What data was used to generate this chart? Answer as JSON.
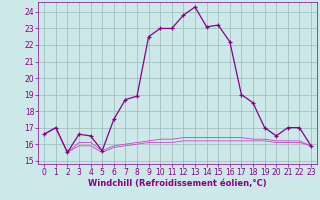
{
  "xlabel": "Windchill (Refroidissement éolien,°C)",
  "background_color": "#cce8e8",
  "grid_color": "#99bbbb",
  "line_color": "#880088",
  "line_color2": "#cc44cc",
  "xlim": [
    -0.5,
    23.5
  ],
  "ylim": [
    14.8,
    24.6
  ],
  "yticks": [
    15,
    16,
    17,
    18,
    19,
    20,
    21,
    22,
    23,
    24
  ],
  "xticks": [
    0,
    1,
    2,
    3,
    4,
    5,
    6,
    7,
    8,
    9,
    10,
    11,
    12,
    13,
    14,
    15,
    16,
    17,
    18,
    19,
    20,
    21,
    22,
    23
  ],
  "series1_x": [
    0,
    1,
    2,
    3,
    4,
    5,
    6,
    7,
    8,
    9,
    10,
    11,
    12,
    13,
    14,
    15,
    16,
    17,
    18,
    19,
    20,
    21,
    22,
    23
  ],
  "series1_y": [
    16.6,
    17.0,
    15.5,
    16.6,
    16.5,
    15.6,
    17.5,
    18.7,
    18.9,
    22.5,
    23.0,
    23.0,
    23.8,
    24.3,
    23.1,
    23.2,
    22.2,
    19.0,
    18.5,
    17.0,
    16.5,
    17.0,
    17.0,
    15.9
  ],
  "series2_x": [
    0,
    1,
    2,
    3,
    4,
    5,
    6,
    7,
    8,
    9,
    10,
    11,
    12,
    13,
    14,
    15,
    16,
    17,
    18,
    19,
    20,
    21,
    22,
    23
  ],
  "series2_y": [
    16.6,
    17.0,
    15.5,
    15.9,
    15.9,
    15.5,
    15.8,
    15.9,
    16.0,
    16.1,
    16.1,
    16.1,
    16.2,
    16.2,
    16.2,
    16.2,
    16.2,
    16.2,
    16.2,
    16.2,
    16.1,
    16.1,
    16.1,
    15.9
  ],
  "series3_x": [
    0,
    1,
    2,
    3,
    4,
    5,
    6,
    7,
    8,
    9,
    10,
    11,
    12,
    13,
    14,
    15,
    16,
    17,
    18,
    19,
    20,
    21,
    22,
    23
  ],
  "series3_y": [
    16.6,
    17.0,
    15.5,
    16.1,
    16.1,
    15.6,
    15.9,
    16.0,
    16.1,
    16.2,
    16.3,
    16.3,
    16.4,
    16.4,
    16.4,
    16.4,
    16.4,
    16.4,
    16.3,
    16.3,
    16.2,
    16.2,
    16.2,
    15.9
  ],
  "tick_fontsize": 5.5,
  "xlabel_fontsize": 6.0
}
